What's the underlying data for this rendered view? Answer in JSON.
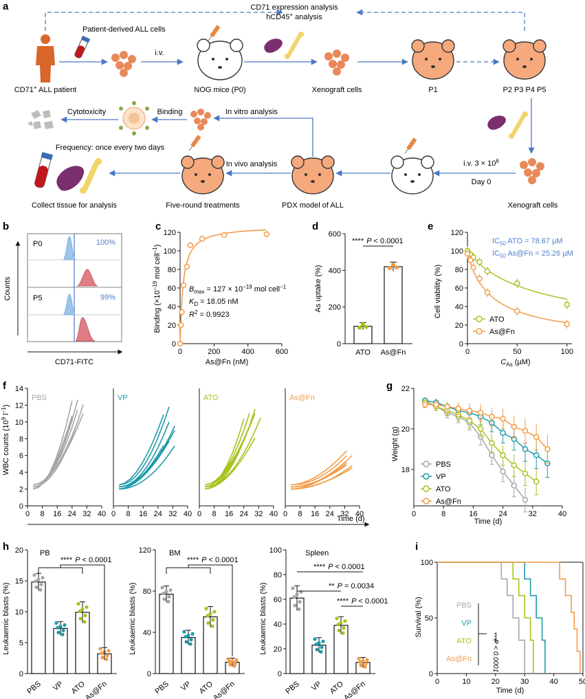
{
  "colors": {
    "blue_arrow": "#4a79c4",
    "mouse_orange": "#f5a97d",
    "pbs": "#a6a6a6",
    "vp": "#1f9aa8",
    "ato": "#a9c11f",
    "asfn": "#f39b45",
    "ic50_blue": "#4b7fd1",
    "histo_blue": "#9cc5e8",
    "histo_red": "#e07c83"
  },
  "panel_a": {
    "label": "a",
    "cd71_analysis_line1": "CD71 expression analysis",
    "cd71_analysis_line2": "hCD45",
    "cd71_analysis_line2_sup": "+",
    "cd71_analysis_line2_tail": " analysis",
    "patient_cells": "Patient-derived ALL cells",
    "iv": "i.v.",
    "patient_label": "CD71",
    "patient_label_sup": "+",
    "patient_label_tail": " ALL patient",
    "nog": "NOG mice (P0)",
    "xenograft": "Xenograft cells",
    "p1": "P1",
    "p2p5": "P2 P3 P4 P5",
    "cytotoxicity": "Cytotoxicity",
    "binding": "Binding",
    "in_vitro": "In vitro analysis",
    "frequency": "Frequency: once every two days",
    "in_vivo": "In vivo analysis",
    "iv_dose": "i.v. 3 × 10",
    "iv_dose_sup": "6",
    "day0": "Day 0",
    "collect": "Collect tissue for analysis",
    "five_round": "Five-round treatments",
    "pdx": "PDX model of ALL",
    "xenograft2": "Xenograft cells"
  },
  "panel_b": {
    "label": "b",
    "p0": "P0",
    "p5": "P5",
    "pct_p0": "100%",
    "pct_p5": "99%",
    "ylabel": "Counts",
    "xlabel": "CD71-FITC"
  },
  "panel_c": {
    "label": "c",
    "ylabel": "Binding (×10",
    "ylabel_sup": "−19",
    "ylabel_tail": " mol cell",
    "ylabel_sup2": "−1",
    "ylabel_end": ")",
    "xlabel": "As@Fn (nM)",
    "bmax_text": "B",
    "bmax_sub": "max",
    "bmax_val": " = 127 × 10",
    "bmax_sup": "−19",
    "bmax_tail": " mol cell",
    "bmax_sup2": "−1",
    "kd_text": "K",
    "kd_sub": "D",
    "kd_val": " = 18.05 nM",
    "r2_text": "R",
    "r2_sup": "2",
    "r2_val": " = 0.9923",
    "yticks": [
      "0",
      "20",
      "40",
      "60",
      "80",
      "100",
      "120"
    ],
    "xticks": [
      "0",
      "200",
      "400",
      "600"
    ]
  },
  "panel_d": {
    "label": "d",
    "ylabel": "As uptake (%)",
    "sig": "****",
    "p_text": "P",
    "p_val": " < 0.0001",
    "yticks": [
      "0",
      "200",
      "400",
      "600"
    ],
    "categories": [
      "ATO",
      "As@Fn"
    ]
  },
  "panel_e": {
    "label": "e",
    "ylabel": "Cell viability (%)",
    "ic50_ato": "IC",
    "ic50_sub": "50",
    "ic50_ato_val": " ATO = 78.67 µM",
    "ic50_asfn_val": " As@Fn = 25.26 µM",
    "legend_ato": "ATO",
    "legend_asfn": "As@Fn",
    "xlabel": "C",
    "xlabel_sub": "As",
    "xlabel_tail": " (µM)",
    "yticks": [
      "0",
      "20",
      "40",
      "60",
      "80",
      "100",
      "120"
    ],
    "xticks": [
      "0",
      "50",
      "100"
    ]
  },
  "panel_f": {
    "label": "f",
    "ylabel": "WBC counts (10",
    "ylabel_sup": "9",
    "ylabel_tail": " l",
    "ylabel_sup2": "−1",
    "ylabel_end": ")",
    "xlabel": "Time (d)",
    "groups": [
      "PBS",
      "VP",
      "ATO",
      "As@Fn"
    ],
    "yticks": [
      "0",
      "2",
      "4",
      "6",
      "8",
      "10",
      "12",
      "14"
    ],
    "xticks": [
      "0",
      "8",
      "16",
      "24",
      "32",
      "40"
    ]
  },
  "panel_g": {
    "label": "g",
    "ylabel": "Weight (g)",
    "xlabel": "Time (d)",
    "yticks": [
      "18",
      "20",
      "22"
    ],
    "xticks": [
      "0",
      "8",
      "16",
      "24",
      "32",
      "40"
    ],
    "legend": [
      "PBS",
      "VP",
      "ATO",
      "As@Fn"
    ]
  },
  "panel_h": {
    "label": "h",
    "ylabel": "Leukaemic blasts (%)",
    "pb_title": "PB",
    "bm_title": "BM",
    "spleen_title": "Spleen",
    "categories": [
      "PBS",
      "VP",
      "ATO",
      "As@Fn"
    ],
    "pb_yticks": [
      "0",
      "5",
      "10",
      "15",
      "20"
    ],
    "bm_yticks": [
      "0",
      "40",
      "80",
      "120"
    ],
    "spleen_yticks": [
      "0",
      "20",
      "40",
      "60",
      "80",
      "100"
    ],
    "sig4": "****",
    "sig2": "**",
    "p_text": "P",
    "p_lt": " < 0.0001",
    "p_0034": " = 0.0034"
  },
  "panel_i": {
    "label": "i",
    "ylabel": "Survival (%)",
    "xlabel": "Time (d)",
    "legend": [
      "PBS",
      "VP",
      "ATO",
      "As@Fn"
    ],
    "sig": "****",
    "p_vertical": "P < 0.0001",
    "yticks": [
      "0",
      "50",
      "100"
    ],
    "xticks": [
      "0",
      "10",
      "20",
      "30",
      "40",
      "50"
    ]
  },
  "chart_data": [
    {
      "type": "scatter",
      "id": "c",
      "title": "",
      "xlabel": "As@Fn (nM)",
      "ylabel": "Binding (×10^-19 mol cell^-1)",
      "x": [
        0,
        5,
        10,
        20,
        40,
        60,
        130,
        260,
        510
      ],
      "y": [
        0,
        20,
        34,
        63,
        83,
        106,
        113,
        117,
        118
      ],
      "fit": {
        "model": "one-site",
        "bmax": 127,
        "kd": 18.05
      },
      "xlim": [
        0,
        600
      ],
      "ylim": [
        0,
        120
      ]
    },
    {
      "type": "bar",
      "id": "d",
      "categories": [
        "ATO",
        "As@Fn"
      ],
      "values": [
        95,
        420
      ],
      "errors": [
        20,
        25
      ],
      "ylabel": "As uptake (%)",
      "ylim": [
        0,
        600
      ]
    },
    {
      "type": "line",
      "id": "e",
      "xlabel": "C_As (µM)",
      "ylabel": "Cell viability (%)",
      "xlim": [
        0,
        100
      ],
      "ylim": [
        0,
        120
      ],
      "series": [
        {
          "name": "ATO",
          "x": [
            0,
            3,
            6,
            12,
            20,
            50,
            100
          ],
          "y": [
            100,
            96,
            93,
            88,
            78,
            65,
            42
          ]
        },
        {
          "name": "As@Fn",
          "x": [
            0,
            3,
            6,
            12,
            20,
            50,
            100
          ],
          "y": [
            97,
            90,
            82,
            70,
            55,
            35,
            21
          ]
        }
      ]
    },
    {
      "type": "line",
      "id": "g",
      "xlabel": "Time (d)",
      "ylabel": "Weight (g)",
      "xlim": [
        0,
        40
      ],
      "ylim": [
        16.2,
        22
      ],
      "series": [
        {
          "name": "PBS",
          "x": [
            3,
            6,
            9,
            12,
            15,
            18,
            21,
            24,
            27,
            30
          ],
          "y": [
            21.4,
            21.1,
            20.8,
            20.6,
            20.3,
            19.6,
            18.7,
            17.9,
            17.2,
            16.5
          ]
        },
        {
          "name": "VP",
          "x": [
            3,
            6,
            9,
            12,
            15,
            18,
            21,
            24,
            27,
            30,
            33,
            36
          ],
          "y": [
            21.4,
            21.3,
            21.1,
            20.9,
            20.8,
            20.6,
            20.3,
            19.8,
            19.5,
            19.0,
            18.7,
            18.3
          ]
        },
        {
          "name": "ATO",
          "x": [
            3,
            6,
            9,
            12,
            15,
            18,
            21,
            24,
            27,
            30,
            33
          ],
          "y": [
            21.3,
            21.1,
            20.9,
            20.7,
            20.4,
            20.0,
            19.3,
            18.7,
            18.2,
            17.8,
            17.4
          ]
        },
        {
          "name": "As@Fn",
          "x": [
            3,
            6,
            9,
            12,
            15,
            18,
            21,
            24,
            27,
            30,
            33,
            36
          ],
          "y": [
            21.2,
            21.2,
            21.1,
            21.0,
            20.9,
            20.8,
            20.6,
            20.5,
            20.1,
            19.9,
            19.6,
            19.0
          ]
        }
      ]
    },
    {
      "type": "bar",
      "id": "h-PB",
      "title": "PB",
      "categories": [
        "PBS",
        "VP",
        "ATO",
        "As@Fn"
      ],
      "values": [
        14.8,
        7.3,
        9.9,
        3.2
      ],
      "errors": [
        1.4,
        1.1,
        1.7,
        1.0
      ],
      "ylim": [
        0,
        20
      ]
    },
    {
      "type": "bar",
      "id": "h-BM",
      "title": "BM",
      "categories": [
        "PBS",
        "VP",
        "ATO",
        "As@Fn"
      ],
      "values": [
        77,
        35,
        55,
        11
      ],
      "errors": [
        8,
        7,
        10,
        4
      ],
      "ylim": [
        0,
        120
      ]
    },
    {
      "type": "bar",
      "id": "h-Spleen",
      "title": "Spleen",
      "categories": [
        "PBS",
        "VP",
        "ATO",
        "As@Fn"
      ],
      "values": [
        61,
        23,
        39,
        9
      ],
      "errors": [
        10,
        6,
        7,
        4
      ],
      "ylim": [
        0,
        100
      ]
    },
    {
      "type": "line",
      "id": "i",
      "xlabel": "Time (d)",
      "ylabel": "Survival (%)",
      "xlim": [
        0,
        50
      ],
      "ylim": [
        0,
        100
      ],
      "series": [
        {
          "name": "PBS",
          "x": [
            0,
            20,
            22,
            24,
            26,
            28,
            30
          ],
          "y": [
            100,
            100,
            85,
            70,
            50,
            30,
            0
          ]
        },
        {
          "name": "VP",
          "x": [
            0,
            27,
            30,
            32,
            34,
            36,
            37
          ],
          "y": [
            100,
            100,
            85,
            70,
            50,
            30,
            0
          ]
        },
        {
          "name": "ATO",
          "x": [
            0,
            24,
            26,
            28,
            30,
            32,
            33
          ],
          "y": [
            100,
            100,
            85,
            70,
            50,
            30,
            0
          ]
        },
        {
          "name": "As@Fn",
          "x": [
            0,
            39,
            42,
            44,
            46,
            47,
            48,
            49
          ],
          "y": [
            100,
            100,
            85,
            70,
            55,
            40,
            20,
            0
          ]
        }
      ]
    }
  ]
}
